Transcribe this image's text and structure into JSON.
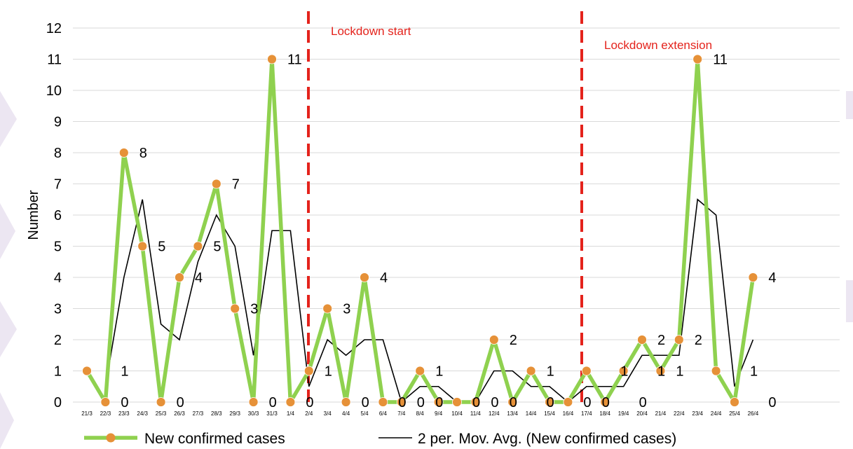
{
  "chart_data": {
    "type": "line",
    "ylabel": "Number",
    "xlabel": "",
    "ylim": [
      0,
      12
    ],
    "yticks": [
      0,
      1,
      2,
      3,
      4,
      5,
      6,
      7,
      8,
      9,
      10,
      11,
      12
    ],
    "grid": "horizontal",
    "legend_position": "bottom",
    "categories": [
      "21/3",
      "22/3",
      "23/3",
      "24/3",
      "25/3",
      "26/3",
      "27/3",
      "28/3",
      "29/3",
      "30/3",
      "31/3",
      "1/4",
      "2/4",
      "3/4",
      "4/4",
      "5/4",
      "6/4",
      "7/4",
      "8/4",
      "9/4",
      "10/4",
      "11/4",
      "12/4",
      "13/4",
      "14/4",
      "15/4",
      "16/4",
      "17/4",
      "18/4",
      "19/4",
      "20/4",
      "21/4",
      "22/4",
      "23/4",
      "24/4",
      "25/4",
      "26/4"
    ],
    "series": [
      {
        "name": "New confirmed cases",
        "color": "#8fd14f",
        "marker_color": "#e69138",
        "values": [
          1,
          0,
          8,
          5,
          0,
          4,
          5,
          7,
          3,
          0,
          11,
          0,
          1,
          3,
          0,
          4,
          0,
          0,
          1,
          0,
          0,
          0,
          2,
          0,
          1,
          0,
          0,
          1,
          0,
          1,
          2,
          1,
          2,
          11,
          1,
          0,
          4
        ]
      },
      {
        "name": "2 per. Mov. Avg. (New confirmed cases)",
        "color": "#000000",
        "values": [
          null,
          0.5,
          4,
          6.5,
          2.5,
          2,
          4.5,
          6,
          5,
          1.5,
          5.5,
          5.5,
          0.5,
          2,
          1.5,
          2,
          2,
          0,
          0.5,
          0.5,
          0,
          0,
          1,
          1,
          0.5,
          0.5,
          0,
          0.5,
          0.5,
          0.5,
          1.5,
          1.5,
          1.5,
          6.5,
          6,
          0.5,
          2
        ]
      }
    ],
    "data_labels": [
      {
        "index": 1,
        "text": "1"
      },
      {
        "index": 1,
        "text": "0"
      },
      {
        "index": 2,
        "text": "8"
      },
      {
        "index": 3,
        "text": "5"
      },
      {
        "index": 4,
        "text": "0"
      },
      {
        "index": 5,
        "text": "4"
      },
      {
        "index": 6,
        "text": "5"
      },
      {
        "index": 7,
        "text": "7"
      },
      {
        "index": 8,
        "text": "3"
      },
      {
        "index": 9,
        "text": "0"
      },
      {
        "index": 10,
        "text": "11"
      },
      {
        "index": 11,
        "text": "0"
      },
      {
        "index": 12,
        "text": "1"
      },
      {
        "index": 13,
        "text": "3"
      },
      {
        "index": 14,
        "text": "0"
      },
      {
        "index": 15,
        "text": "4"
      },
      {
        "index": 16,
        "text": "0"
      },
      {
        "index": 17,
        "text": "0"
      },
      {
        "index": 18,
        "text": "0"
      },
      {
        "index": 18,
        "text": "1"
      },
      {
        "index": 20,
        "text": "0"
      },
      {
        "index": 21,
        "text": "0"
      },
      {
        "index": 22,
        "text": "0"
      },
      {
        "index": 22,
        "text": "2"
      },
      {
        "index": 24,
        "text": "0"
      },
      {
        "index": 24,
        "text": "1"
      },
      {
        "index": 26,
        "text": "0"
      },
      {
        "index": 27,
        "text": "0"
      },
      {
        "index": 28,
        "text": "1"
      },
      {
        "index": 29,
        "text": "0"
      },
      {
        "index": 30,
        "text": "1"
      },
      {
        "index": 30,
        "text": "2"
      },
      {
        "index": 31,
        "text": "1"
      },
      {
        "index": 32,
        "text": "2"
      },
      {
        "index": 33,
        "text": "11"
      },
      {
        "index": 35,
        "text": "1"
      },
      {
        "index": 36,
        "text": "0"
      },
      {
        "index": 36,
        "text": "4"
      }
    ],
    "annotations": [
      {
        "text": "Lockdown start",
        "x_index": 10.5,
        "color": "#e4231c"
      },
      {
        "text": "Lockdown extension",
        "x_index": 24.5,
        "color": "#e4231c"
      }
    ]
  }
}
